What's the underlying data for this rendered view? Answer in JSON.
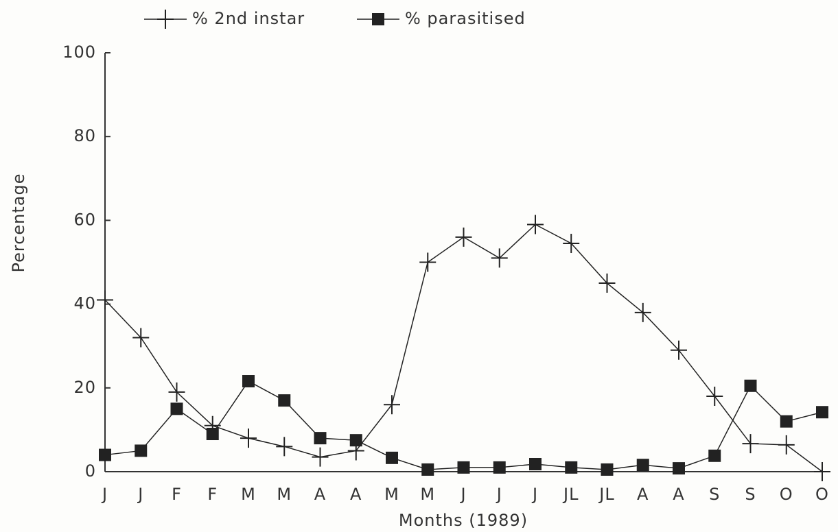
{
  "chart_data": {
    "type": "line",
    "x_label": "Months (1989)",
    "y_label": "Percentage",
    "categories": [
      "J",
      "J",
      "F",
      "F",
      "M",
      "M",
      "A",
      "A",
      "M",
      "M",
      "J",
      "J",
      "J",
      "JL",
      "JL",
      "A",
      "A",
      "S",
      "S",
      "O",
      "O"
    ],
    "series": [
      {
        "name": "% 2nd instar",
        "color": "#222222",
        "marker": "plus",
        "values": [
          41,
          32,
          19,
          11,
          8,
          6,
          3.5,
          5,
          16,
          50,
          56,
          51,
          59,
          54.5,
          45,
          38,
          29,
          18,
          6.7,
          6.4,
          0
        ]
      },
      {
        "name": "% parasitised",
        "color": "#222222",
        "marker": "square",
        "values": [
          4,
          5,
          15,
          9,
          21.6,
          17,
          8,
          7.5,
          3.3,
          0.5,
          1,
          1,
          1.8,
          1,
          0.5,
          1.6,
          0.8,
          3.8,
          20.5,
          12,
          14.2
        ]
      }
    ],
    "ylim": [
      0,
      100
    ],
    "yticks": [
      0,
      20,
      40,
      60,
      80,
      100
    ],
    "grid": false,
    "legend": "top"
  }
}
